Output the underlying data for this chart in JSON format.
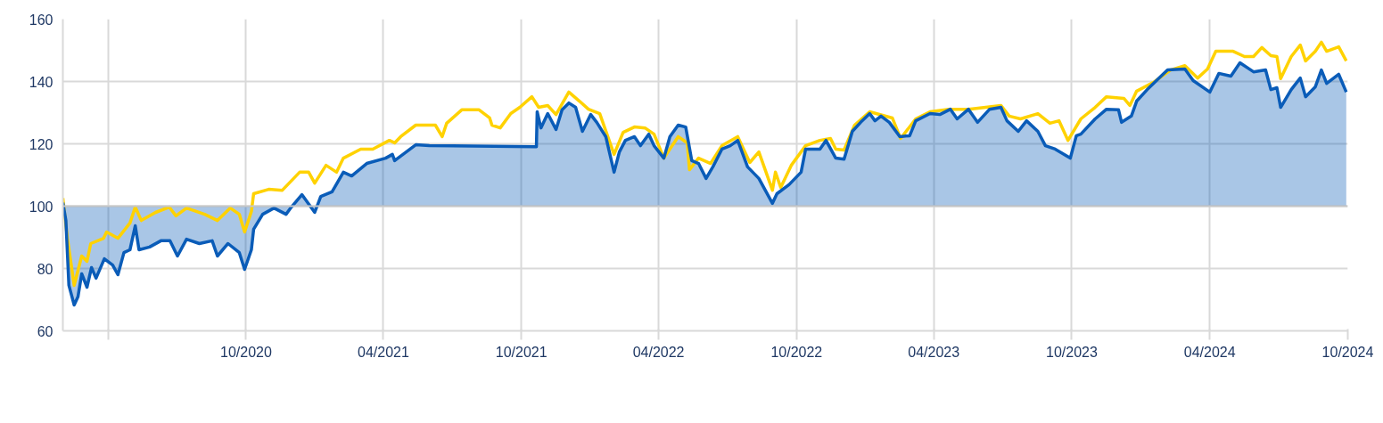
{
  "chart_data": {
    "type": "line",
    "xlim": [
      "2020-02-01",
      "2024-10-01"
    ],
    "xticks": [
      {
        "value": "2020-04-01",
        "label": null
      },
      {
        "value": "2020-10-01",
        "label": "10/2020"
      },
      {
        "value": "2021-04-01",
        "label": "04/2021"
      },
      {
        "value": "2021-10-01",
        "label": "10/2021"
      },
      {
        "value": "2022-04-01",
        "label": "04/2022"
      },
      {
        "value": "2022-10-01",
        "label": "10/2022"
      },
      {
        "value": "2023-04-01",
        "label": "04/2023"
      },
      {
        "value": "2023-10-01",
        "label": "10/2023"
      },
      {
        "value": "2024-04-01",
        "label": "04/2024"
      },
      {
        "value": "2024-10-01",
        "label": "10/2024"
      }
    ],
    "ylim": [
      60,
      160
    ],
    "yticks": [
      60,
      80,
      100,
      120,
      140,
      160
    ],
    "grid": true,
    "line_style": "solid",
    "ref_lines": [
      {
        "axis": "y",
        "value": 100,
        "color": "#c8c8c8"
      }
    ],
    "series": [
      {
        "color": "#ffd200",
        "x": [
          "2020-02-01",
          "2020-02-07",
          "2020-02-16",
          "2020-02-26",
          "2020-03-04",
          "2020-03-09",
          "2020-03-26",
          "2020-03-30",
          "2020-04-14",
          "2020-04-30",
          "2020-05-07",
          "2020-05-15",
          "2020-06-03",
          "2020-06-21",
          "2020-06-30",
          "2020-07-14",
          "2020-08-07",
          "2020-08-24",
          "2020-09-10",
          "2020-09-22",
          "2020-09-29",
          "2020-10-08",
          "2020-10-11",
          "2020-10-31",
          "2020-11-18",
          "2020-12-11",
          "2020-12-23",
          "2020-12-31",
          "2021-01-15",
          "2021-01-29",
          "2021-02-07",
          "2021-03-02",
          "2021-03-18",
          "2021-04-09",
          "2021-04-16",
          "2021-04-24",
          "2021-05-14",
          "2021-06-09",
          "2021-06-18",
          "2021-06-24",
          "2021-07-14",
          "2021-08-06",
          "2021-08-20",
          "2021-08-23",
          "2021-09-03",
          "2021-09-17",
          "2021-09-29",
          "2021-10-15",
          "2021-10-24",
          "2021-11-05",
          "2021-11-16",
          "2021-12-03",
          "2021-12-17",
          "2021-12-29",
          "2022-01-13",
          "2022-02-01",
          "2022-02-13",
          "2022-02-28",
          "2022-03-14",
          "2022-03-26",
          "2022-04-08",
          "2022-04-27",
          "2022-05-09",
          "2022-05-12",
          "2022-05-24",
          "2022-06-09",
          "2022-06-24",
          "2022-07-15",
          "2022-07-31",
          "2022-08-12",
          "2022-08-30",
          "2022-09-03",
          "2022-09-10",
          "2022-09-24",
          "2022-10-13",
          "2022-11-01",
          "2022-11-15",
          "2022-11-22",
          "2022-12-03",
          "2022-12-17",
          "2023-01-06",
          "2023-02-05",
          "2023-02-16",
          "2023-03-08",
          "2023-03-27",
          "2023-04-21",
          "2023-05-17",
          "2023-06-29",
          "2023-07-10",
          "2023-07-25",
          "2023-08-17",
          "2023-09-02",
          "2023-09-14",
          "2023-09-26",
          "2023-10-13",
          "2023-11-01",
          "2023-11-16",
          "2023-12-09",
          "2023-12-17",
          "2023-12-26",
          "2024-01-17",
          "2024-02-09",
          "2024-02-28",
          "2024-03-16",
          "2024-03-29",
          "2024-04-09",
          "2024-05-02",
          "2024-05-17",
          "2024-05-29",
          "2024-06-09",
          "2024-06-21",
          "2024-06-29",
          "2024-07-04",
          "2024-07-18",
          "2024-07-30",
          "2024-08-06",
          "2024-08-19",
          "2024-08-27",
          "2024-09-03",
          "2024-09-19",
          "2024-09-29"
        ],
        "values": [
          102.6,
          89.7,
          74.6,
          84,
          82.3,
          88,
          89.7,
          91.7,
          89.7,
          94.6,
          99.7,
          95.4,
          98,
          99.7,
          96.9,
          99.4,
          97.4,
          95.4,
          99.4,
          97.4,
          91.7,
          98.3,
          104,
          105.4,
          105.1,
          110.9,
          110.9,
          107.4,
          113.1,
          110.9,
          115.4,
          118.3,
          118.3,
          121.1,
          120.3,
          122.3,
          126,
          126,
          122.3,
          126.6,
          130.9,
          130.9,
          128.3,
          126,
          125.1,
          129.7,
          131.7,
          135.1,
          131.7,
          132.3,
          129.4,
          136.6,
          133.7,
          131.1,
          129.7,
          116.6,
          123.7,
          125.4,
          125.1,
          123.1,
          115.4,
          122.3,
          120.3,
          111.7,
          115.4,
          113.7,
          119.4,
          122.3,
          114,
          117.4,
          105.1,
          110.9,
          106,
          113.1,
          119.4,
          121.1,
          121.7,
          118.3,
          118,
          126,
          130.3,
          128.3,
          121.7,
          128,
          130.3,
          131.1,
          131.1,
          132.3,
          128.9,
          128,
          129.7,
          126.6,
          127.4,
          121.1,
          128,
          131.7,
          135.1,
          134.6,
          132.3,
          136.9,
          139.7,
          143.7,
          145.1,
          141.1,
          144,
          149.7,
          149.7,
          148,
          148,
          150.9,
          148.3,
          148,
          140.9,
          148,
          151.7,
          146.6,
          149.7,
          152.6,
          149.7,
          151.1,
          146.6
        ]
      },
      {
        "type": "area",
        "color": "#0a5cb8",
        "x": [
          "2020-02-01",
          "2020-02-05",
          "2020-02-09",
          "2020-02-16",
          "2020-02-21",
          "2020-02-26",
          "2020-03-04",
          "2020-03-10",
          "2020-03-16",
          "2020-03-27",
          "2020-04-07",
          "2020-04-14",
          "2020-04-22",
          "2020-04-30",
          "2020-05-07",
          "2020-05-12",
          "2020-05-26",
          "2020-06-10",
          "2020-06-22",
          "2020-07-02",
          "2020-07-14",
          "2020-07-31",
          "2020-08-17",
          "2020-08-24",
          "2020-09-07",
          "2020-09-22",
          "2020-09-29",
          "2020-10-08",
          "2020-10-11",
          "2020-10-23",
          "2020-11-07",
          "2020-11-23",
          "2020-11-30",
          "2020-12-14",
          "2020-12-31",
          "2021-01-08",
          "2021-01-23",
          "2021-02-07",
          "2021-02-18",
          "2021-03-10",
          "2021-04-04",
          "2021-04-13",
          "2021-04-16",
          "2021-05-14",
          "2021-06-01",
          "2021-10-21",
          "2021-10-22",
          "2021-10-27",
          "2021-11-05",
          "2021-11-16",
          "2021-11-24",
          "2021-12-03",
          "2021-12-12",
          "2021-12-21",
          "2022-01-01",
          "2022-01-09",
          "2022-01-21",
          "2022-02-01",
          "2022-02-08",
          "2022-02-16",
          "2022-02-28",
          "2022-03-08",
          "2022-03-19",
          "2022-03-26",
          "2022-04-08",
          "2022-04-16",
          "2022-04-27",
          "2022-05-07",
          "2022-05-15",
          "2022-05-24",
          "2022-06-03",
          "2022-06-12",
          "2022-06-24",
          "2022-07-05",
          "2022-07-15",
          "2022-07-28",
          "2022-08-12",
          "2022-08-30",
          "2022-09-05",
          "2022-09-21",
          "2022-10-07",
          "2022-10-13",
          "2022-11-01",
          "2022-11-09",
          "2022-11-22",
          "2022-12-03",
          "2022-12-14",
          "2022-12-25",
          "2023-01-06",
          "2023-01-13",
          "2023-01-21",
          "2023-02-01",
          "2023-02-15",
          "2023-02-28",
          "2023-03-08",
          "2023-03-27",
          "2023-04-09",
          "2023-04-23",
          "2023-05-02",
          "2023-05-17",
          "2023-05-29",
          "2023-06-14",
          "2023-06-29",
          "2023-07-07",
          "2023-07-22",
          "2023-08-02",
          "2023-08-17",
          "2023-08-27",
          "2023-09-09",
          "2023-09-21",
          "2023-09-29",
          "2023-10-07",
          "2023-10-13",
          "2023-11-01",
          "2023-11-16",
          "2023-12-02",
          "2023-12-06",
          "2023-12-19",
          "2023-12-26",
          "2024-01-09",
          "2024-01-24",
          "2024-02-05",
          "2024-02-28",
          "2024-03-10",
          "2024-04-01",
          "2024-04-13",
          "2024-04-29",
          "2024-05-11",
          "2024-05-29",
          "2024-06-14",
          "2024-06-21",
          "2024-06-29",
          "2024-07-04",
          "2024-07-18",
          "2024-07-30",
          "2024-08-06",
          "2024-08-19",
          "2024-08-27",
          "2024-09-03",
          "2024-09-19",
          "2024-09-29"
        ],
        "values": [
          101.1,
          95.4,
          74.6,
          68.3,
          70.9,
          78.3,
          74,
          80.3,
          76.9,
          83.1,
          81.1,
          78,
          85.1,
          86,
          93.7,
          86,
          86.9,
          88.9,
          88.9,
          84,
          89.4,
          88,
          88.9,
          84,
          88,
          85.1,
          79.7,
          86,
          92.6,
          97.4,
          99.4,
          97.4,
          99.7,
          103.7,
          98,
          103.1,
          104.6,
          110.9,
          109.7,
          113.7,
          115.4,
          116.6,
          114.6,
          119.7,
          119.4,
          119.1,
          130.3,
          125.1,
          129.7,
          124.6,
          130.9,
          133.1,
          131.7,
          124,
          129.4,
          126.9,
          122.3,
          110.9,
          117.4,
          121.1,
          122.3,
          119.4,
          123.1,
          119.4,
          115.4,
          122.3,
          126,
          125.4,
          114.6,
          113.7,
          108.9,
          112.6,
          118.3,
          119.4,
          121.1,
          112.6,
          108.9,
          100.9,
          104,
          106.9,
          110.9,
          118.3,
          118.3,
          121.1,
          115.4,
          115.1,
          124,
          126.9,
          129.7,
          127.4,
          128.9,
          126.9,
          122.3,
          122.6,
          127.4,
          129.7,
          129.4,
          131.1,
          128,
          131.1,
          126.9,
          131.1,
          131.7,
          127.4,
          124,
          127.4,
          124,
          119.4,
          118.3,
          116.6,
          115.4,
          122.6,
          123.1,
          128,
          131.1,
          130.9,
          126.9,
          128.9,
          133.7,
          137.4,
          140.9,
          143.7,
          144,
          140.3,
          136.6,
          142.6,
          141.7,
          146,
          143.1,
          143.7,
          137.4,
          138,
          131.7,
          137.4,
          141.1,
          135.1,
          138.3,
          143.7,
          139.4,
          142.3,
          136.6
        ]
      }
    ]
  }
}
